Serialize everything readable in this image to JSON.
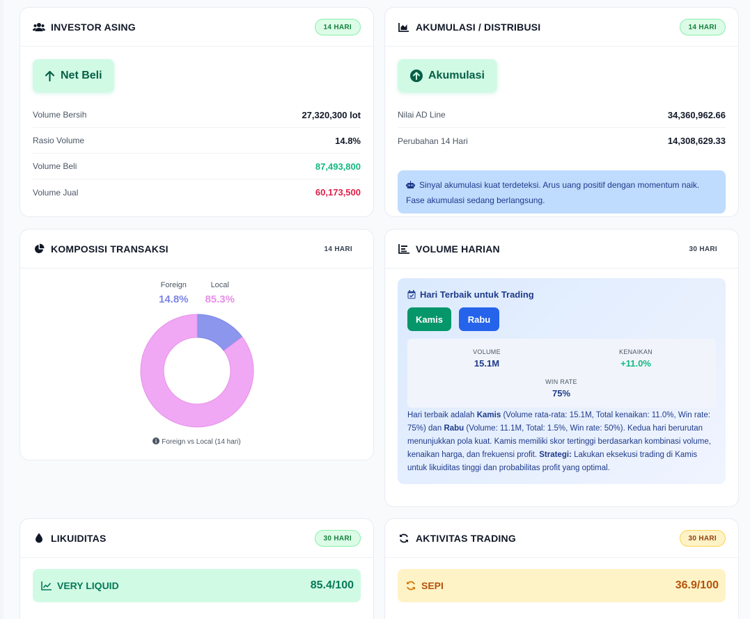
{
  "colors": {
    "green": "#10b981",
    "red": "#e11d48",
    "foreign": "#7b85e8",
    "local": "#e88ee8",
    "blue_btn": "#2563eb",
    "green_btn": "#059669"
  },
  "investor_asing": {
    "icon": "users-icon",
    "title": "INVESTOR ASING",
    "badge": "14 HARI",
    "status": "Net Beli",
    "status_icon": "arrow-up-icon",
    "rows": [
      {
        "label": "Volume Bersih",
        "value": "27,320,300 lot"
      },
      {
        "label": "Rasio Volume",
        "value": "14.8%"
      },
      {
        "label": "Volume Beli",
        "value": "87,493,800"
      },
      {
        "label": "Volume Jual",
        "value": "60,173,500"
      }
    ]
  },
  "akumulasi": {
    "icon": "area-chart-icon",
    "title": "AKUMULASI / DISTRIBUSI",
    "badge": "14 HARI",
    "status": "Akumulasi",
    "status_icon": "arrow-circle-up-icon",
    "rows": [
      {
        "label": "Nilai AD Line",
        "value": "34,360,962.66"
      },
      {
        "label": "Perubahan 14 Hari",
        "value": "14,308,629.33"
      }
    ],
    "signal_icon": "robot-icon",
    "signal": "Sinyal akumulasi kuat terdeteksi. Arus uang positif dengan momentum naik. Fase akumulasi sedang berlangsung."
  },
  "komposisi": {
    "icon": "pie-chart-icon",
    "title": "KOMPOSISI TRANSAKSI",
    "badge": "14 HARI",
    "caption_icon": "info-icon",
    "caption": "Foreign vs Local (14 hari)"
  },
  "chart_data": {
    "type": "pie",
    "categories": [
      "Foreign",
      "Local"
    ],
    "values": [
      14.8,
      85.3
    ],
    "value_labels": [
      "14.8%",
      "85.3%"
    ],
    "donut": true,
    "legend": "top"
  },
  "volume_harian": {
    "icon": "bar-list-icon",
    "title": "VOLUME HARIAN",
    "badge": "30 HARI",
    "best_title": "Hari Terbaik untuk Trading",
    "best_icon": "calendar-check-icon",
    "days": [
      "Kamis",
      "Rabu"
    ],
    "stats": {
      "volume_label": "VOLUME",
      "volume_value": "15.1M",
      "kenaikan_label": "KENAIKAN",
      "kenaikan_value": "+11.0%",
      "winrate_label": "WIN RATE",
      "winrate_value": "75%"
    },
    "desc": {
      "p1": "Hari terbaik adalah ",
      "d1": "Kamis",
      "p2": " (Volume rata-rata: 15.1M, Total kenaikan: 11.0%, Win rate: 75%) dan ",
      "d2": "Rabu",
      "p3": " (Volume: 11.1M, Total: 1.5%, Win rate: 50%). Kedua hari berurutan menunjukkan pola kuat. Kamis memiliki skor tertinggi berdasarkan kombinasi volume, kenaikan harga, dan frekuensi profit. ",
      "strategi_label": "Strategi:",
      "p4": " Lakukan eksekusi trading di Kamis untuk likuiditas tinggi dan probabilitas profit yang optimal."
    }
  },
  "likuiditas": {
    "icon": "droplet-icon",
    "title": "LIKUIDITAS",
    "badge": "30 HARI",
    "level_icon": "line-chart-icon",
    "level": "VERY LIQUID",
    "score": "85.4/100"
  },
  "aktivitas": {
    "icon": "sync-icon",
    "title": "AKTIVITAS TRADING",
    "badge": "30 HARI",
    "level_icon": "sync-icon",
    "level": "SEPI",
    "score": "36.9/100"
  }
}
